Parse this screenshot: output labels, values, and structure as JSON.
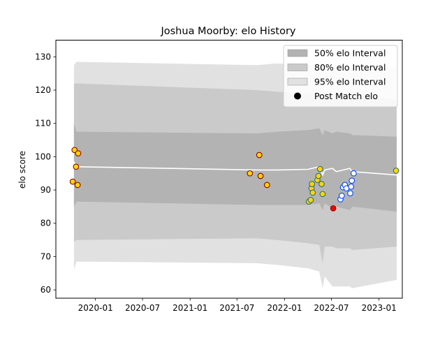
{
  "chart_data": {
    "type": "scatter",
    "title": "Joshua Moorby: elo History",
    "xlabel": "",
    "ylabel": "elo score",
    "xlim": [
      "2019-08-01",
      "2023-04-01"
    ],
    "ylim": [
      57.5,
      135
    ],
    "x_ticks": [
      "2020-01-01",
      "2020-07-01",
      "2021-01-01",
      "2021-07-01",
      "2022-01-01",
      "2022-07-01",
      "2023-01-01"
    ],
    "x_tick_labels": [
      "2020-01",
      "2020-07",
      "2021-01",
      "2021-07",
      "2022-01",
      "2022-07",
      "2023-01"
    ],
    "y_ticks": [
      60,
      70,
      80,
      90,
      100,
      110,
      120,
      130
    ],
    "y_tick_labels": [
      "60",
      "70",
      "80",
      "90",
      "100",
      "110",
      "120",
      "130"
    ],
    "grid": false,
    "legend_position": "upper-right",
    "legend": [
      {
        "label": "50% elo Interval",
        "kind": "band",
        "color": "#b3b3b3"
      },
      {
        "label": "80% elo Interval",
        "kind": "band",
        "color": "#cacaca"
      },
      {
        "label": "95% elo Interval",
        "kind": "band",
        "color": "#e1e1e1"
      },
      {
        "label": "Post Match elo",
        "kind": "marker",
        "color": "#000000"
      }
    ],
    "colors": {
      "band50": "#b3b3b3",
      "band80": "#cacaca",
      "band95": "#e1e1e1",
      "mean_line": "#ffffff",
      "point_yellow": "#ffd700",
      "edge_dark_red": "#8b0000",
      "edge_teal": "#2f6f6f",
      "edge_blue": "#0044ff",
      "point_red": "#ff0000",
      "point_white": "#ffffff"
    },
    "bands": {
      "x": [
        "2019-10-10",
        "2019-10-20",
        "2021-09-15",
        "2021-12-01",
        "2022-04-01",
        "2022-05-15",
        "2022-05-28",
        "2022-06-05",
        "2022-07-05",
        "2022-07-20",
        "2022-09-10",
        "2022-09-20",
        "2023-03-10"
      ],
      "mean": [
        98.5,
        97.0,
        96.0,
        96.0,
        96.2,
        97.0,
        94.5,
        96.0,
        96.5,
        95.5,
        96.5,
        95.5,
        94.5
      ],
      "p50_lo": [
        85.0,
        86.5,
        85.5,
        85.5,
        85.5,
        86.0,
        84.0,
        86.0,
        84.5,
        85.0,
        84.0,
        85.0,
        83.5
      ],
      "p50_hi": [
        110.0,
        107.5,
        107.0,
        107.5,
        108.0,
        108.5,
        106.5,
        108.0,
        107.0,
        107.5,
        107.0,
        106.5,
        106.0
      ],
      "p80_lo": [
        74.5,
        75.0,
        75.5,
        75.0,
        74.0,
        73.5,
        68.0,
        73.0,
        73.0,
        72.5,
        72.5,
        72.0,
        73.0
      ],
      "p80_hi": [
        122.0,
        122.0,
        120.0,
        119.5,
        119.0,
        119.0,
        119.0,
        119.0,
        119.0,
        119.0,
        119.0,
        119.0,
        117.0
      ],
      "p95_lo": [
        66.0,
        68.5,
        68.0,
        67.5,
        66.5,
        65.5,
        60.5,
        64.0,
        61.0,
        61.0,
        61.0,
        60.5,
        63.0
      ],
      "p95_hi": [
        127.5,
        128.5,
        127.5,
        128.0,
        127.5,
        127.5,
        127.5,
        127.5,
        127.5,
        127.5,
        127.5,
        127.5,
        126.5
      ]
    },
    "points": [
      {
        "x": "2019-10-05",
        "y": 92.5,
        "fill": "#ffd700",
        "edge": "#8b0000"
      },
      {
        "x": "2019-10-12",
        "y": 102.0,
        "fill": "#ffd700",
        "edge": "#8b0000"
      },
      {
        "x": "2019-10-18",
        "y": 97.0,
        "fill": "#ffd700",
        "edge": "#8b0000"
      },
      {
        "x": "2019-10-26",
        "y": 101.0,
        "fill": "#ffd700",
        "edge": "#8b0000"
      },
      {
        "x": "2019-10-24",
        "y": 91.5,
        "fill": "#ffd700",
        "edge": "#8b0000"
      },
      {
        "x": "2021-08-20",
        "y": 95.0,
        "fill": "#ffd700",
        "edge": "#8b0000"
      },
      {
        "x": "2021-09-25",
        "y": 100.5,
        "fill": "#ffd700",
        "edge": "#8b0000"
      },
      {
        "x": "2021-09-30",
        "y": 94.2,
        "fill": "#ffd700",
        "edge": "#8b0000"
      },
      {
        "x": "2021-10-25",
        "y": 91.5,
        "fill": "#ffd700",
        "edge": "#8b0000"
      },
      {
        "x": "2022-04-05",
        "y": 86.5,
        "fill": "#ffd700",
        "edge": "#2f6f6f"
      },
      {
        "x": "2022-04-12",
        "y": 87.0,
        "fill": "#ffd700",
        "edge": "#2f6f6f"
      },
      {
        "x": "2022-04-15",
        "y": 90.5,
        "fill": "#ffd700",
        "edge": "#2f6f6f"
      },
      {
        "x": "2022-04-17",
        "y": 91.8,
        "fill": "#ffd700",
        "edge": "#2f6f6f"
      },
      {
        "x": "2022-04-20",
        "y": 89.2,
        "fill": "#ffd700",
        "edge": "#2f6f6f"
      },
      {
        "x": "2022-05-08",
        "y": 93.0,
        "fill": "#ffd700",
        "edge": "#2f6f6f"
      },
      {
        "x": "2022-05-12",
        "y": 94.2,
        "fill": "#ffd700",
        "edge": "#2f6f6f"
      },
      {
        "x": "2022-05-18",
        "y": 96.3,
        "fill": "#ffd700",
        "edge": "#2f6f6f"
      },
      {
        "x": "2022-05-24",
        "y": 91.8,
        "fill": "#ffd700",
        "edge": "#2f6f6f"
      },
      {
        "x": "2022-05-28",
        "y": 88.8,
        "fill": "#ffd700",
        "edge": "#2f6f6f"
      },
      {
        "x": "2022-07-08",
        "y": 84.5,
        "fill": "#ff0000",
        "edge": "#8b0000"
      },
      {
        "x": "2022-08-05",
        "y": 87.2,
        "fill": "#ffffff",
        "edge": "#0044ff"
      },
      {
        "x": "2022-08-10",
        "y": 88.3,
        "fill": "#ffffff",
        "edge": "#0044ff"
      },
      {
        "x": "2022-08-15",
        "y": 90.8,
        "fill": "#ffffff",
        "edge": "#0044ff"
      },
      {
        "x": "2022-08-22",
        "y": 91.5,
        "fill": "#ffffff",
        "edge": "#0044ff"
      },
      {
        "x": "2022-08-28",
        "y": 90.5,
        "fill": "#ffffff",
        "edge": "#0044ff"
      },
      {
        "x": "2022-09-12",
        "y": 89.0,
        "fill": "#ffffff",
        "edge": "#0044ff"
      },
      {
        "x": "2022-09-15",
        "y": 91.0,
        "fill": "#ffffff",
        "edge": "#0044ff"
      },
      {
        "x": "2022-09-18",
        "y": 92.8,
        "fill": "#ffffff",
        "edge": "#0044ff"
      },
      {
        "x": "2022-09-25",
        "y": 95.0,
        "fill": "#ffffff",
        "edge": "#0044ff"
      },
      {
        "x": "2023-03-08",
        "y": 95.8,
        "fill": "#ffd700",
        "edge": "#2f6f6f"
      }
    ]
  }
}
